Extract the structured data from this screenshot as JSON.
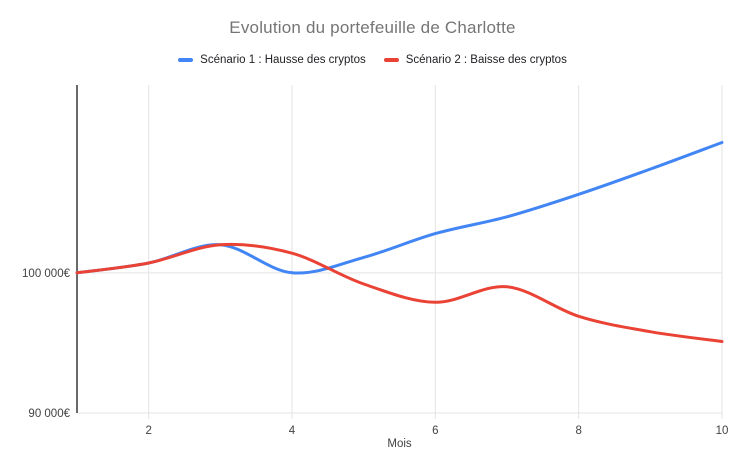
{
  "chart_data": {
    "type": "line",
    "title": "Evolution du portefeuille de Charlotte",
    "xlabel": "Mois",
    "ylabel": "",
    "x": [
      1,
      2,
      3,
      4,
      5,
      6,
      7,
      8,
      9,
      10
    ],
    "x_ticks": [
      "2",
      "4",
      "6",
      "8",
      "10"
    ],
    "xlim": [
      1,
      10
    ],
    "ylim": [
      90000,
      113400
    ],
    "y_ticks": [
      {
        "value": 100000,
        "label": "100 000€"
      },
      {
        "value": 90000,
        "label": "90 000€"
      }
    ],
    "grid": true,
    "line_smoothing": true,
    "legend_position": "top",
    "series": [
      {
        "name": "Scénario 1 : Hausse des cryptos",
        "color": "#4285f4",
        "values": [
          100000,
          100700,
          102000,
          100000,
          101100,
          102800,
          104000,
          105600,
          107400,
          109300
        ]
      },
      {
        "name": "Scénario 2 : Baisse des cryptos",
        "color": "#ea4335",
        "values": [
          100000,
          100700,
          102000,
          101400,
          99200,
          97900,
          99000,
          96900,
          95800,
          95100
        ]
      }
    ],
    "colors": {
      "title": "#757575",
      "legend_text": "#202124",
      "tick_text": "#424242",
      "grid": "#e3e3e3",
      "axis": "#1a1a1a",
      "background": "#ffffff"
    }
  }
}
